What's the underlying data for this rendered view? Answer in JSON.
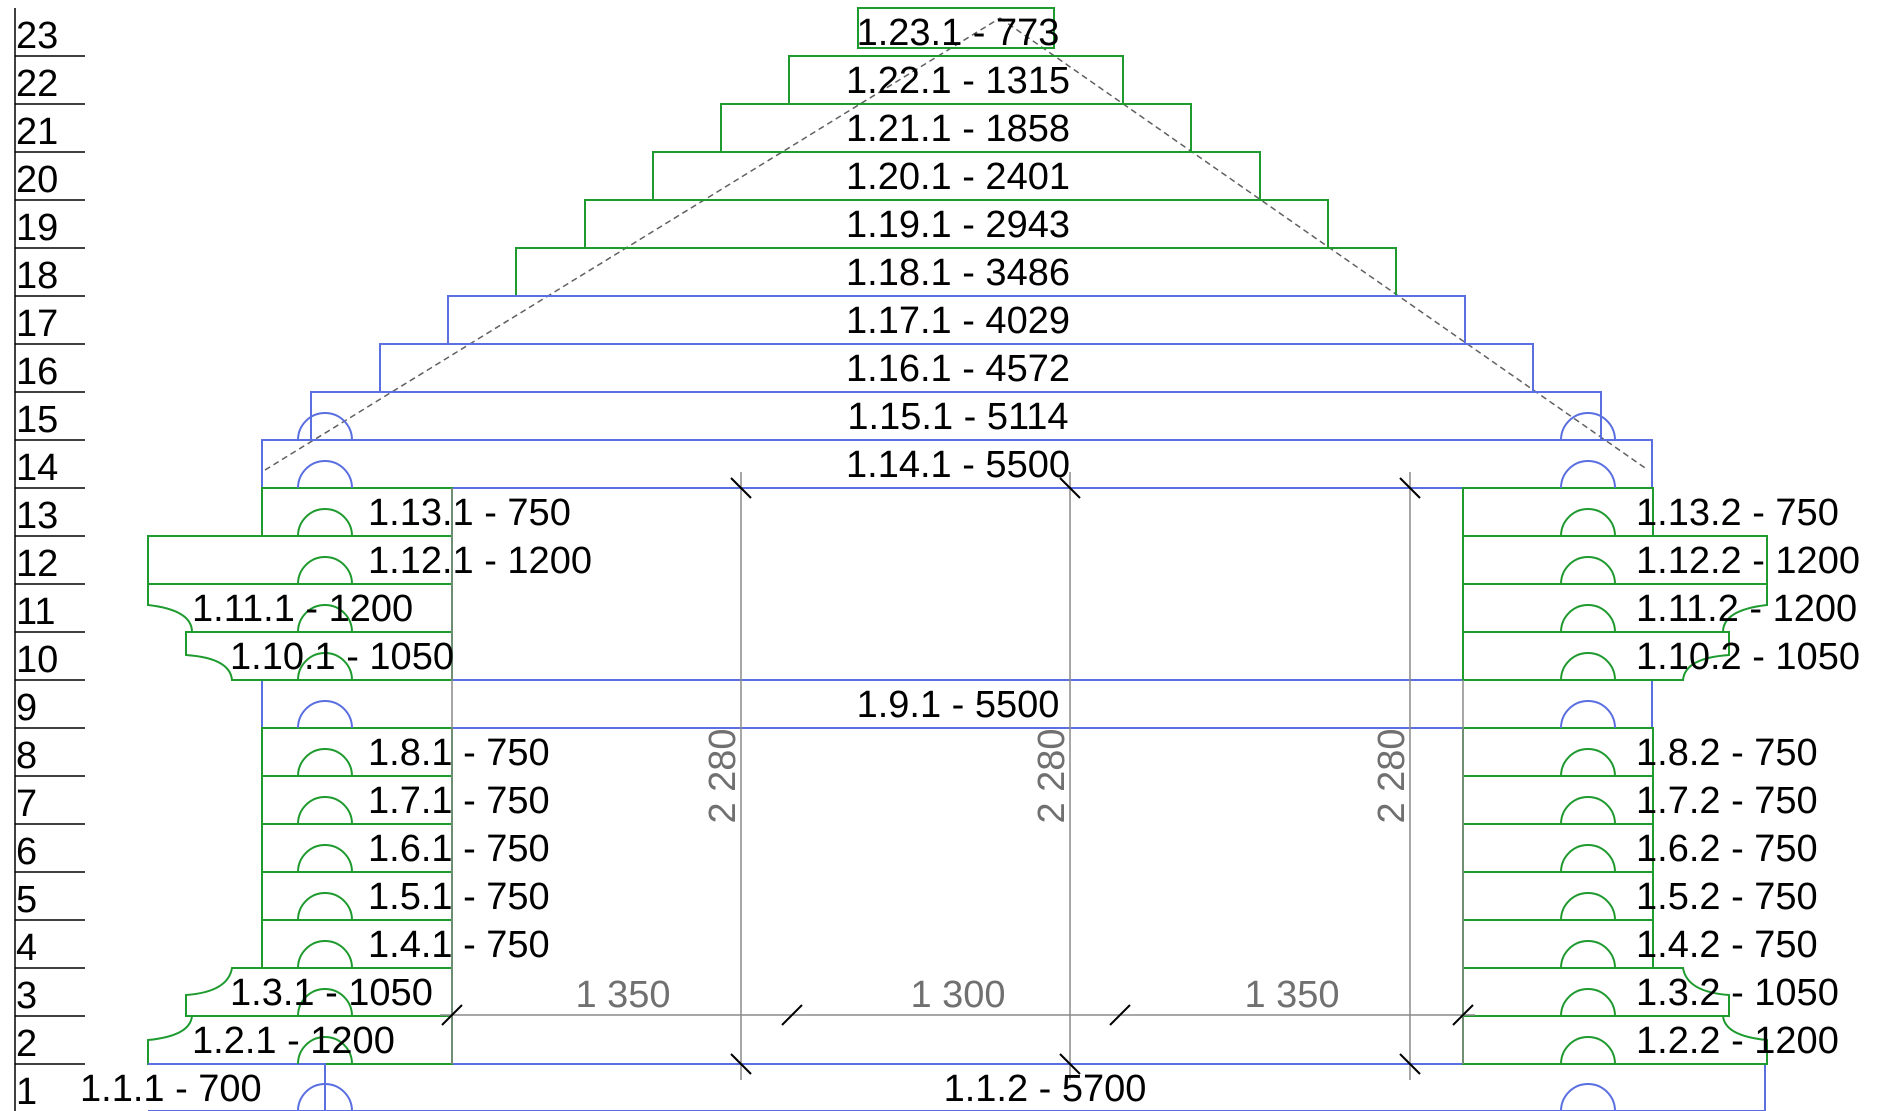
{
  "row_numbers": [
    "23",
    "22",
    "21",
    "20",
    "19",
    "18",
    "17",
    "16",
    "15",
    "14",
    "13",
    "12",
    "11",
    "10",
    "9",
    "8",
    "7",
    "6",
    "5",
    "4",
    "3",
    "2",
    "1"
  ],
  "logs": {
    "r23": "1.23.1 - 773",
    "r22": "1.22.1 - 1315",
    "r21": "1.21.1 - 1858",
    "r20": "1.20.1 - 2401",
    "r19": "1.19.1 - 2943",
    "r18": "1.18.1 - 3486",
    "r17": "1.17.1 - 4029",
    "r16": "1.16.1 - 4572",
    "r15": "1.15.1 - 5114",
    "r14": "1.14.1 - 5500",
    "r13_left": "1.13.1 - 750",
    "r13_right": "1.13.2 - 750",
    "r12_left": "1.12.1 - 1200",
    "r12_right": "1.12.2 - 1200",
    "r11_left": "1.11.1 - 1200",
    "r11_right": "1.11.2 - 1200",
    "r10_left": "1.10.1 - 1050",
    "r10_right": "1.10.2 - 1050",
    "r9": "1.9.1 - 5500",
    "r8_left": "1.8.1 - 750",
    "r8_right": "1.8.2 - 750",
    "r7_left": "1.7.1 - 750",
    "r7_right": "1.7.2 - 750",
    "r6_left": "1.6.1 - 750",
    "r6_right": "1.6.2 - 750",
    "r5_left": "1.5.1 - 750",
    "r5_right": "1.5.2 - 750",
    "r4_left": "1.4.1 - 750",
    "r4_right": "1.4.2 - 750",
    "r3_left": "1.3.1 - 1050",
    "r3_right": "1.3.2 - 1050",
    "r2_left": "1.2.1 - 1200",
    "r2_right": "1.2.2 - 1200",
    "r1_left": "1.1.1 - 700",
    "r1_right": "1.1.2 - 5700"
  },
  "dimensions": {
    "span_left": "1 350",
    "span_middle": "1 300",
    "span_right": "1 350",
    "height_left": "2 280",
    "height_middle": "2 280",
    "height_right": "2 280"
  },
  "colors": {
    "green_log": "#1f9a2f",
    "blue_log": "#5a6fe0",
    "dimension": "#8a8a8a"
  }
}
